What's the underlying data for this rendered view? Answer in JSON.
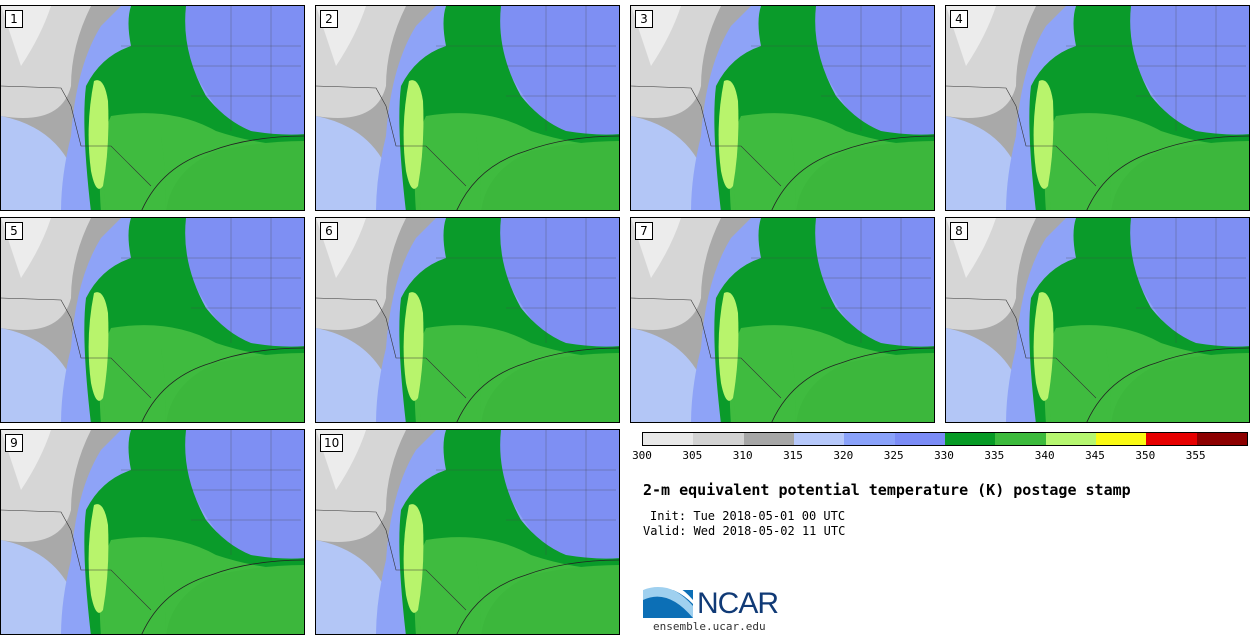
{
  "panels": [
    "1",
    "2",
    "3",
    "4",
    "5",
    "6",
    "7",
    "8",
    "9",
    "10"
  ],
  "legend": {
    "colors": [
      "#e8e8e8",
      "#d2d2d2",
      "#a6a6a6",
      "#b6c8fa",
      "#8aa2fa",
      "#7b8cf6",
      "#069a25",
      "#3cba3c",
      "#b6f670",
      "#fafa14",
      "#e60000",
      "#8c0000"
    ],
    "ticks": [
      "300",
      "305",
      "310",
      "315",
      "320",
      "325",
      "330",
      "335",
      "340",
      "345",
      "350",
      "355"
    ]
  },
  "title": "2-m equivalent potential temperature (K) postage stamp",
  "init": "Init: Tue 2018-05-01 00 UTC",
  "valid": "Valid: Wed 2018-05-02 11 UTC",
  "logo": {
    "text": "NCAR",
    "url": "ensemble.ucar.edu"
  }
}
